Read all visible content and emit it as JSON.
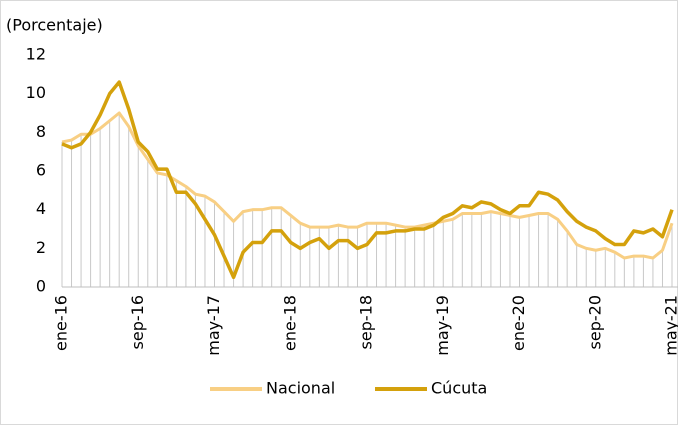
{
  "chart_data": {
    "type": "line",
    "y_label": "(Porcentaje)",
    "categories": [
      "ene-16",
      null,
      null,
      null,
      null,
      null,
      null,
      null,
      "sep-16",
      null,
      null,
      null,
      null,
      null,
      null,
      null,
      "may-17",
      null,
      null,
      null,
      null,
      null,
      null,
      null,
      "ene-18",
      null,
      null,
      null,
      null,
      null,
      null,
      null,
      "sep-18",
      null,
      null,
      null,
      null,
      null,
      null,
      null,
      "may-19",
      null,
      null,
      null,
      null,
      null,
      null,
      null,
      "ene-20",
      null,
      null,
      null,
      null,
      null,
      null,
      null,
      "sep-20",
      null,
      null,
      null,
      null,
      null,
      null,
      null,
      "may-21"
    ],
    "series": [
      {
        "name": "Nacional",
        "color": "#f8cf84",
        "values": [
          7.5,
          7.6,
          7.9,
          7.9,
          8.2,
          8.6,
          9.0,
          8.3,
          7.3,
          6.6,
          5.9,
          5.8,
          5.5,
          5.2,
          4.8,
          4.7,
          4.4,
          3.9,
          3.4,
          3.9,
          4.0,
          4.0,
          4.1,
          4.1,
          3.7,
          3.3,
          3.1,
          3.1,
          3.1,
          3.2,
          3.1,
          3.1,
          3.3,
          3.3,
          3.3,
          3.2,
          3.1,
          3.1,
          3.2,
          3.3,
          3.4,
          3.5,
          3.8,
          3.8,
          3.8,
          3.9,
          3.8,
          3.7,
          3.6,
          3.7,
          3.8,
          3.8,
          3.5,
          2.9,
          2.2,
          2.0,
          1.9,
          2.0,
          1.8,
          1.5,
          1.6,
          1.6,
          1.5,
          1.9,
          3.3
        ]
      },
      {
        "name": "Cúcuta",
        "color": "#d4a10c",
        "values": [
          7.4,
          7.2,
          7.4,
          8.0,
          8.9,
          10.0,
          10.6,
          9.2,
          7.5,
          7.0,
          6.1,
          6.1,
          4.9,
          4.9,
          4.3,
          3.5,
          2.7,
          1.6,
          0.5,
          1.8,
          2.3,
          2.3,
          2.9,
          2.9,
          2.3,
          2.0,
          2.3,
          2.5,
          2.0,
          2.4,
          2.4,
          2.0,
          2.2,
          2.8,
          2.8,
          2.9,
          2.9,
          3.0,
          3.0,
          3.2,
          3.6,
          3.8,
          4.2,
          4.1,
          4.4,
          4.3,
          4.0,
          3.8,
          4.2,
          4.2,
          4.9,
          4.8,
          4.5,
          3.9,
          3.4,
          3.1,
          2.9,
          2.5,
          2.2,
          2.2,
          2.9,
          2.8,
          3.0,
          2.6,
          4.0
        ]
      }
    ],
    "ylim": [
      0,
      12
    ],
    "yticks": [
      0,
      2,
      4,
      6,
      8,
      10,
      12
    ],
    "grid": false,
    "drop_lines": true
  }
}
